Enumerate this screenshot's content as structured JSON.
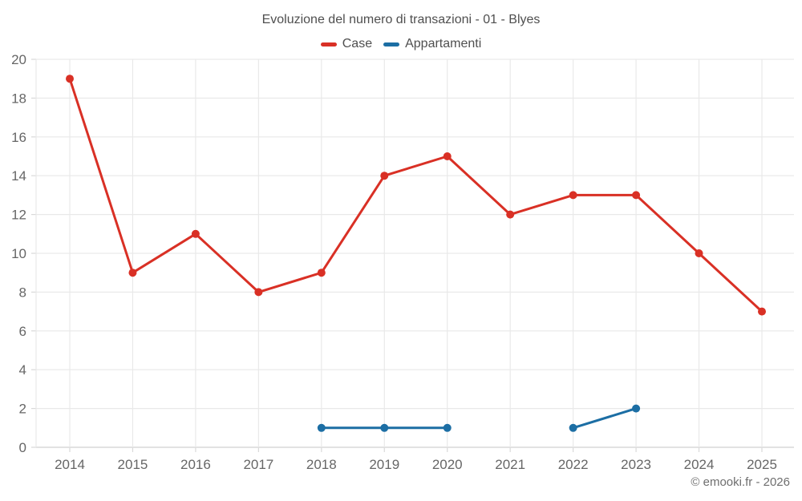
{
  "title": "Evoluzione del numero di transazioni - 01 - Blyes",
  "legend": [
    {
      "label": "Case",
      "color": "#d93025"
    },
    {
      "label": "Appartamenti",
      "color": "#1c6ea4"
    }
  ],
  "footer": "© emooki.fr - 2026",
  "colors": {
    "case_red": "#d93025",
    "appartamenti_blue": "#1c6ea4",
    "grid": "#e9e9e9",
    "axis": "#d9d9d9",
    "tick_label": "#666666"
  },
  "chart_data": {
    "type": "line",
    "title": "Evoluzione del numero di transazioni - 01 - Blyes",
    "x": [
      2014,
      2015,
      2016,
      2017,
      2018,
      2019,
      2020,
      2021,
      2022,
      2023,
      2024,
      2025
    ],
    "series": [
      {
        "name": "Case",
        "color": "#d93025",
        "values": [
          19,
          9,
          11,
          8,
          9,
          14,
          15,
          12,
          13,
          13,
          10,
          7
        ]
      },
      {
        "name": "Appartamenti",
        "color": "#1c6ea4",
        "values": [
          null,
          null,
          null,
          null,
          1,
          1,
          1,
          null,
          1,
          2,
          null,
          null
        ]
      }
    ],
    "xlabel": "",
    "ylabel": "",
    "ylim": [
      0,
      20
    ],
    "yticks": [
      0,
      2,
      4,
      6,
      8,
      10,
      12,
      14,
      16,
      18,
      20
    ],
    "grid": true,
    "legend_position": "top"
  }
}
